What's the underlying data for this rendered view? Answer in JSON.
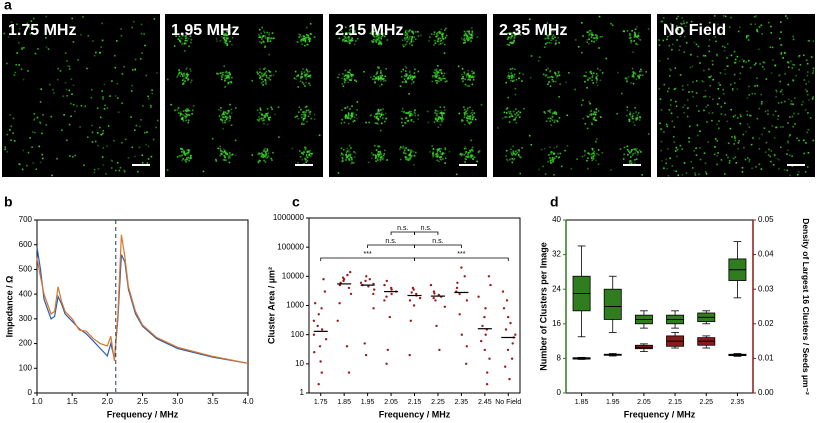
{
  "panel_labels": [
    "a",
    "b",
    "c",
    "d"
  ],
  "images": [
    {
      "label": "1.75 MHz"
    },
    {
      "label": "1.95 MHz"
    },
    {
      "label": "2.15 MHz"
    },
    {
      "label": "2.35 MHz"
    },
    {
      "label": "No Field"
    }
  ],
  "chart_data": [
    {
      "type": "line",
      "x_label": "Frequency / MHz",
      "y_label": "Impedance / Ω",
      "x": [
        1.0,
        1.05,
        1.1,
        1.15,
        1.2,
        1.25,
        1.3,
        1.35,
        1.4,
        1.5,
        1.6,
        1.7,
        1.8,
        1.9,
        2.0,
        2.05,
        2.1,
        2.15,
        2.2,
        2.25,
        2.3,
        2.4,
        2.5,
        2.7,
        3.0,
        3.5,
        4.0
      ],
      "series": [
        {
          "color": "#2b5fb3",
          "values": [
            590,
            500,
            380,
            340,
            300,
            310,
            390,
            360,
            320,
            290,
            260,
            240,
            210,
            180,
            150,
            200,
            140,
            300,
            560,
            530,
            420,
            320,
            270,
            220,
            180,
            145,
            120
          ]
        },
        {
          "color": "#d9742b",
          "values": [
            545,
            470,
            400,
            360,
            320,
            330,
            430,
            370,
            330,
            300,
            255,
            250,
            220,
            200,
            190,
            230,
            130,
            320,
            640,
            550,
            430,
            330,
            275,
            225,
            185,
            148,
            120
          ]
        }
      ],
      "vline": 2.12,
      "xlim": [
        1.0,
        4.0
      ],
      "xticks": [
        {
          "value": 1.0,
          "label": "1.0"
        },
        {
          "value": 1.5,
          "label": "1.5"
        },
        {
          "value": 2.0,
          "label": "2.0"
        },
        {
          "value": 2.5,
          "label": "2.5"
        },
        {
          "value": 3.0,
          "label": "3.0"
        },
        {
          "value": 3.5,
          "label": "3.5"
        },
        {
          "value": 4.0,
          "label": "4.0"
        }
      ],
      "ylim": [
        0,
        700
      ],
      "yticks": [
        0,
        100,
        200,
        300,
        400,
        500,
        600,
        700
      ]
    },
    {
      "type": "strip",
      "x_label": "Frequency / MHz",
      "y_label": "Cluster Area / µm²",
      "log_scale": true,
      "color": "#9b1b1b",
      "categories": [
        "1.75",
        "1.85",
        "1.95",
        "2.05",
        "2.15",
        "2.25",
        "2.35",
        "2.45",
        "No Field"
      ],
      "medians": [
        130,
        5500,
        5000,
        3000,
        2200,
        2100,
        2800,
        160,
        80
      ],
      "points": [
        [
          2,
          5,
          12,
          25,
          40,
          70,
          100,
          150,
          200,
          300,
          500,
          800,
          1200,
          3000,
          8000
        ],
        [
          5,
          40,
          300,
          1200,
          2500,
          4000,
          5000,
          6000,
          7000,
          8000,
          9000,
          11000,
          14000
        ],
        [
          20,
          50,
          800,
          2500,
          3500,
          4500,
          5000,
          5500,
          6000,
          7000,
          8000,
          10000
        ],
        [
          10,
          30,
          400,
          1500,
          2000,
          2500,
          3000,
          3500,
          4000,
          5000,
          7000
        ],
        [
          20,
          300,
          1000,
          1500,
          1800,
          2200,
          2500,
          2800,
          3500,
          4000
        ],
        [
          30,
          200,
          900,
          1500,
          1800,
          2000,
          2300,
          2600,
          3000,
          5000
        ],
        [
          10,
          40,
          100,
          500,
          1500,
          2500,
          3000,
          4000,
          6000,
          10000,
          20000
        ],
        [
          2,
          5,
          15,
          30,
          60,
          100,
          150,
          200,
          400,
          800,
          2000,
          5000,
          10000
        ],
        [
          3,
          8,
          15,
          30,
          50,
          80,
          100,
          150,
          250,
          400,
          800,
          1500,
          3000
        ]
      ],
      "brackets": [
        {
          "from": "2.05",
          "to": "2.15",
          "label": "n.s."
        },
        {
          "from": "2.15",
          "to": "2.25",
          "label": "n.s."
        },
        {
          "from": "1.95",
          "to": "2.15",
          "label": "n.s."
        },
        {
          "from": "2.15",
          "to": "2.35",
          "label": "n.s."
        },
        {
          "from": "1.75",
          "to": "2.15",
          "label": "***"
        },
        {
          "from": "2.15",
          "to": "No Field",
          "label": "***"
        }
      ],
      "ylim": [
        1,
        1000000
      ],
      "yticks": [
        1,
        10,
        100,
        1000,
        10000,
        100000,
        1000000
      ]
    },
    {
      "type": "box",
      "x_label": "Frequency / MHz",
      "y_label": "Number of Clusters per Image",
      "y2_label": "Density of Largest 16 Clusters / Seeds µm⁻²",
      "categories": [
        "1.85",
        "1.95",
        "2.05",
        "2.15",
        "2.25",
        "2.35"
      ],
      "series": [
        {
          "color": "#2f7d1f",
          "whisker_low": [
            13,
            14,
            15,
            15,
            16,
            22
          ],
          "q1": [
            19,
            17,
            16,
            16,
            16.5,
            26
          ],
          "median": [
            23,
            20,
            17,
            17,
            17.5,
            28.5
          ],
          "q3": [
            27,
            24,
            18,
            18,
            18.5,
            31
          ],
          "whisker_high": [
            34,
            27,
            19,
            19,
            19,
            35
          ]
        },
        {
          "color": "#8b1a1a",
          "axis": "y2",
          "whisker_low": [
            0.0097,
            0.0107,
            0.012,
            0.013,
            0.013,
            0.0106
          ],
          "q1": [
            0.0098,
            0.0109,
            0.0128,
            0.0135,
            0.0138,
            0.0108
          ],
          "median": [
            0.01,
            0.011,
            0.0132,
            0.015,
            0.015,
            0.011
          ],
          "q3": [
            0.0102,
            0.0112,
            0.0138,
            0.0165,
            0.016,
            0.0112
          ],
          "whisker_high": [
            0.0103,
            0.0114,
            0.0142,
            0.0175,
            0.0165,
            0.0114
          ]
        }
      ],
      "ylim": [
        0,
        40
      ],
      "yticks": [
        0,
        8,
        16,
        24,
        32,
        40
      ],
      "y2lim": [
        0,
        0.05
      ],
      "y2ticks": [
        {
          "value": 0,
          "label": "0.00"
        },
        {
          "value": 0.01,
          "label": "0.01"
        },
        {
          "value": 0.02,
          "label": "0.02"
        },
        {
          "value": 0.03,
          "label": "0.03"
        },
        {
          "value": 0.04,
          "label": "0.04"
        },
        {
          "value": 0.05,
          "label": "0.05"
        }
      ]
    }
  ]
}
